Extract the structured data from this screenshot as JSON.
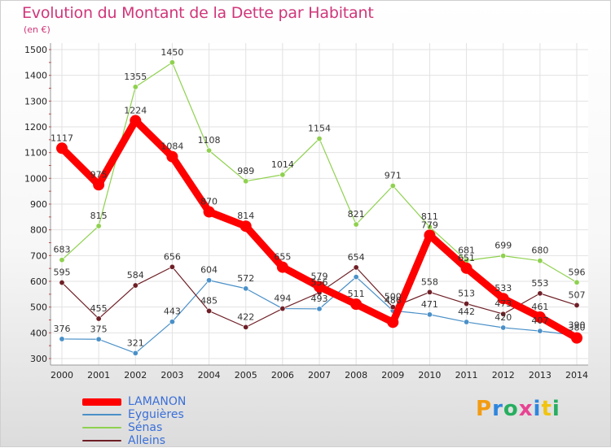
{
  "title": "Evolution du Montant de la Dette par Habitant",
  "subtitle": "(en €)",
  "brand": {
    "name": "Proxiti",
    "letters": [
      {
        "ch": "P",
        "color": "#f39c12"
      },
      {
        "ch": "r",
        "color": "#2e86de"
      },
      {
        "ch": "o",
        "color": "#27ae60"
      },
      {
        "ch": "x",
        "color": "#e84393"
      },
      {
        "ch": "i",
        "color": "#2e86de"
      },
      {
        "ch": "t",
        "color": "#f1c40f"
      },
      {
        "ch": "i",
        "color": "#27ae60"
      }
    ]
  },
  "chart_data": {
    "type": "line",
    "x": [
      "2000",
      "2001",
      "2002",
      "2003",
      "2004",
      "2005",
      "2006",
      "2007",
      "2008",
      "2009",
      "2010",
      "2011",
      "2012",
      "2013",
      "2014"
    ],
    "ylim": [
      300,
      1500
    ],
    "yticks": [
      300,
      400,
      500,
      600,
      700,
      800,
      900,
      1000,
      1100,
      1200,
      1300,
      1400,
      1500
    ],
    "grid": true,
    "legend_position": "bottom-left",
    "series": [
      {
        "name": "LAMANON",
        "color": "#ff0000",
        "emphasis": true,
        "values": [
          1117,
          975,
          1224,
          1084,
          870,
          814,
          655,
          579,
          511,
          441,
          779,
          651,
          533,
          461,
          380
        ],
        "labels": [
          "1117",
          "975",
          "1224",
          "1084",
          "870",
          "814",
          "655",
          "579",
          "511",
          "",
          "779",
          "651",
          "533",
          "461",
          "380"
        ]
      },
      {
        "name": "Eyguières",
        "color": "#4a90c8",
        "values": [
          376,
          375,
          321,
          443,
          604,
          572,
          494,
          493,
          617,
          486,
          471,
          442,
          420,
          407,
          390
        ],
        "labels": [
          "376",
          "375",
          "321",
          "443",
          "604",
          "572",
          "494",
          "493",
          "",
          "486",
          "471",
          "442",
          "420",
          "407",
          "390"
        ]
      },
      {
        "name": "Sénas",
        "color": "#8fd14f",
        "values": [
          683,
          815,
          1355,
          1450,
          1108,
          989,
          1014,
          1154,
          821,
          971,
          811,
          681,
          699,
          680,
          596
        ],
        "labels": [
          "683",
          "815",
          "1355",
          "1450",
          "1108",
          "989",
          "1014",
          "1154",
          "821",
          "971",
          "811",
          "681",
          "699",
          "680",
          "596"
        ]
      },
      {
        "name": "Alleins",
        "color": "#6e1f26",
        "values": [
          595,
          455,
          584,
          656,
          485,
          422,
          494,
          556,
          654,
          500,
          558,
          513,
          473,
          553,
          507
        ],
        "labels": [
          "595",
          "455",
          "584",
          "656",
          "485",
          "422",
          "",
          "556",
          "654",
          "500",
          "558",
          "513",
          "473",
          "553",
          "507"
        ]
      }
    ]
  }
}
